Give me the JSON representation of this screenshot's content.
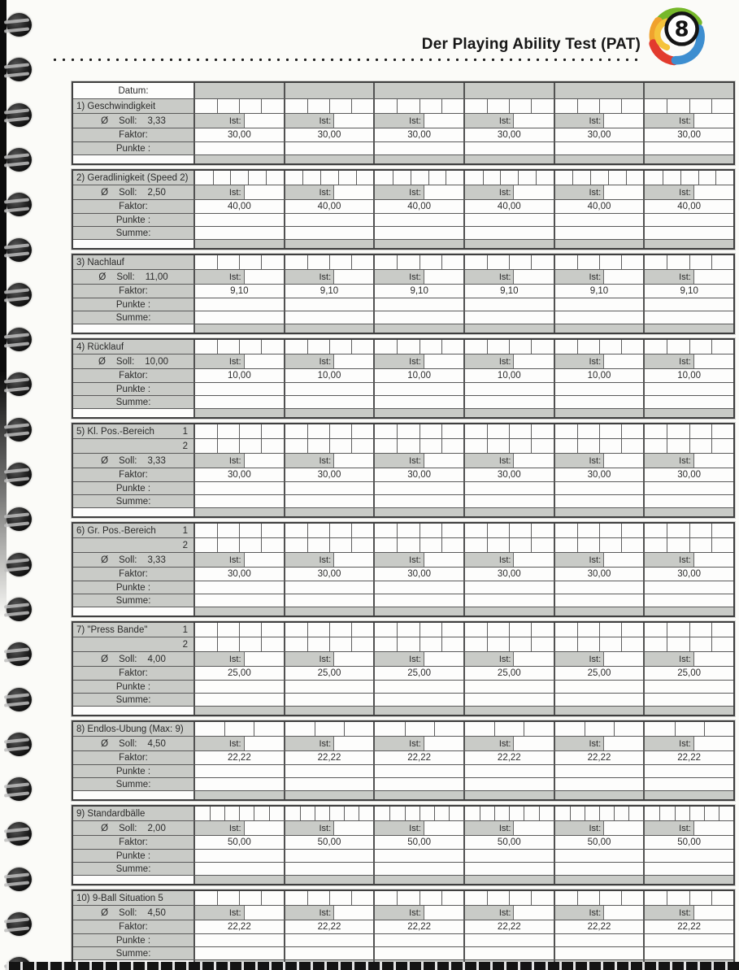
{
  "page": {
    "title": "Der Playing Ability Test (PAT)"
  },
  "table": {
    "datum_label": "Datum:",
    "columns": 6,
    "ist_label": "Ist:",
    "soll_symbol": "Ø",
    "soll_label": "Soll:",
    "faktor_label": "Faktor:",
    "punkte_label": "Punkte :",
    "summe_label": "Summe:",
    "blocks": [
      {
        "title": "1) Geschwindigkeit",
        "soll": "3,33",
        "faktor": "30,00",
        "summe": false,
        "markers": [],
        "subcells": 4
      },
      {
        "title": "2) Geradlinigkeit (Speed 2)",
        "soll": "2,50",
        "faktor": "40,00",
        "summe": true,
        "markers": [],
        "subcells": 5
      },
      {
        "title": "3) Nachlauf",
        "soll": "11,00",
        "faktor": "9,10",
        "summe": true,
        "markers": [],
        "subcells": 4
      },
      {
        "title": "4) Rücklauf",
        "soll": "10,00",
        "faktor": "10,00",
        "summe": true,
        "markers": [],
        "subcells": 4
      },
      {
        "title": "5) Kl. Pos.-Bereich",
        "soll": "3,33",
        "faktor": "30,00",
        "summe": true,
        "markers": [
          "1",
          "2"
        ],
        "subcells": 4
      },
      {
        "title": "6) Gr. Pos.-Bereich",
        "soll": "3,33",
        "faktor": "30,00",
        "summe": true,
        "markers": [
          "1",
          "2"
        ],
        "subcells": 4
      },
      {
        "title": "7) \"Press Bande\"",
        "soll": "4,00",
        "faktor": "25,00",
        "summe": true,
        "markers": [
          "1",
          "2"
        ],
        "subcells": 4
      },
      {
        "title": "8) Endlos-Übung (Max: 9)",
        "soll": "4,50",
        "faktor": "22,22",
        "summe": true,
        "markers": [],
        "subcells": 3
      },
      {
        "title": "9) Standardbälle",
        "soll": "2,00",
        "faktor": "50,00",
        "summe": true,
        "markers": [],
        "subcells": 6
      },
      {
        "title": "10) 9-Ball Situation 5",
        "soll": "4,50",
        "faktor": "22,22",
        "summe": true,
        "markers": [],
        "subcells": 4
      }
    ]
  },
  "colors": {
    "cell_gray": "#c9cbc7",
    "border_dark": "#4a4a4a",
    "logo_green": "#76b82a",
    "logo_orange": "#f0a22e",
    "logo_red": "#e23b2e",
    "logo_blue": "#3d8ed0"
  }
}
